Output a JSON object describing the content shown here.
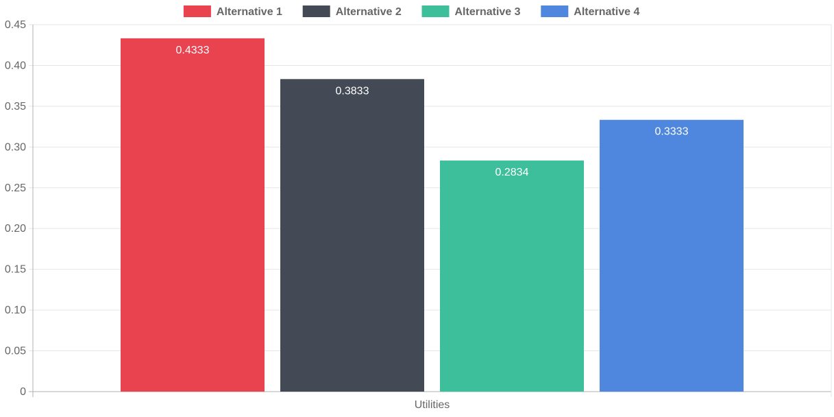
{
  "chart_data": {
    "type": "bar",
    "categories": [
      "Utilities"
    ],
    "series": [
      {
        "name": "Alternative 1",
        "values": [
          0.4333
        ],
        "color": "#e8434f"
      },
      {
        "name": "Alternative 2",
        "values": [
          0.3833
        ],
        "color": "#444a55"
      },
      {
        "name": "Alternative 3",
        "values": [
          0.2834
        ],
        "color": "#3ebf9b"
      },
      {
        "name": "Alternative 4",
        "values": [
          0.3333
        ],
        "color": "#4e87dd"
      }
    ],
    "value_labels": [
      "0.4333",
      "0.3833",
      "0.2834",
      "0.3333"
    ],
    "y_ticks": [
      "0",
      "0.05",
      "0.10",
      "0.15",
      "0.20",
      "0.25",
      "0.30",
      "0.35",
      "0.40",
      "0.45"
    ],
    "ylim": [
      0,
      0.45
    ],
    "grid": true,
    "legend_position": "top",
    "title": "",
    "xlabel": "",
    "ylabel": ""
  }
}
